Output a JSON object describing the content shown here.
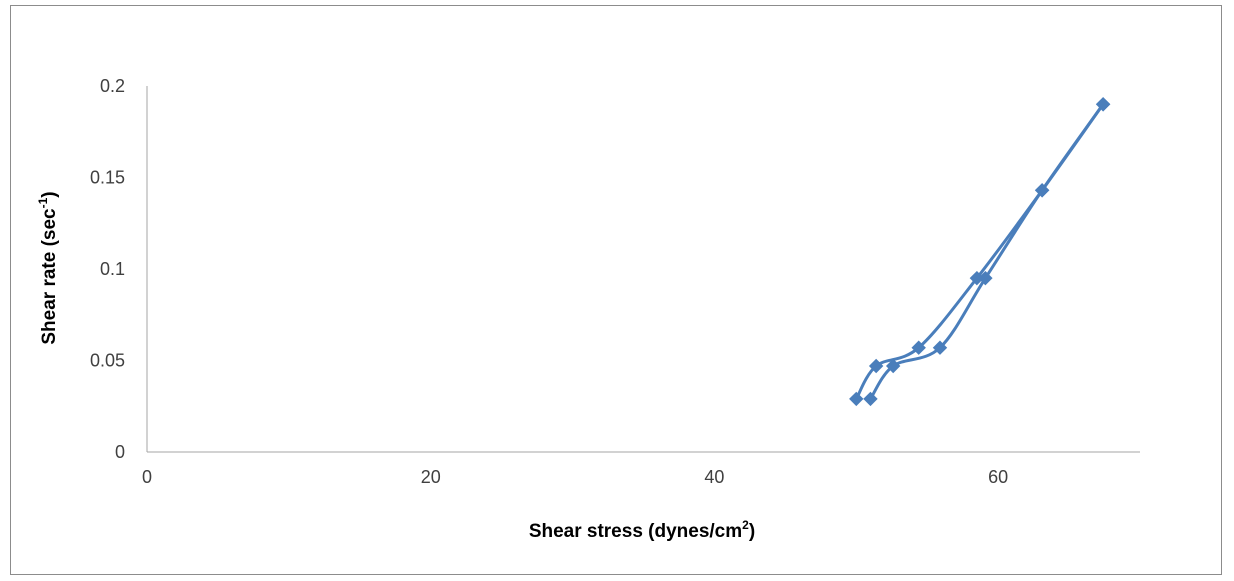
{
  "chart_data": {
    "type": "scatter",
    "title": "",
    "xlabel": "Shear stress (dynes/cm",
    "xlabel_sup": "2",
    "xlabel_end": ")",
    "ylabel": "Shear rate (sec",
    "ylabel_sup": "-1",
    "ylabel_end": ")",
    "xlim": [
      0,
      70
    ],
    "ylim": [
      0,
      0.2
    ],
    "x_ticks": [
      0,
      20,
      40,
      60
    ],
    "x_tick_labels": [
      "0",
      "20",
      "40",
      "60"
    ],
    "y_ticks": [
      0,
      0.05,
      0.1,
      0.15,
      0.2
    ],
    "y_tick_labels": [
      "0",
      "0.05",
      "0.1",
      "0.15",
      "0.2"
    ],
    "grid": false,
    "legend": "none",
    "marker": "diamond",
    "line_style": "smoothed",
    "series": [
      {
        "color": "#4a7ebb",
        "x": [
          50.0,
          51.4,
          54.4,
          58.5,
          63.1,
          67.4
        ],
        "y": [
          0.029,
          0.047,
          0.057,
          0.095,
          0.143,
          0.19
        ]
      },
      {
        "color": "#4a7ebb",
        "x": [
          51.0,
          52.6,
          55.9,
          59.1,
          63.1,
          67.4
        ],
        "y": [
          0.029,
          0.047,
          0.057,
          0.095,
          0.143,
          0.19
        ]
      }
    ]
  }
}
